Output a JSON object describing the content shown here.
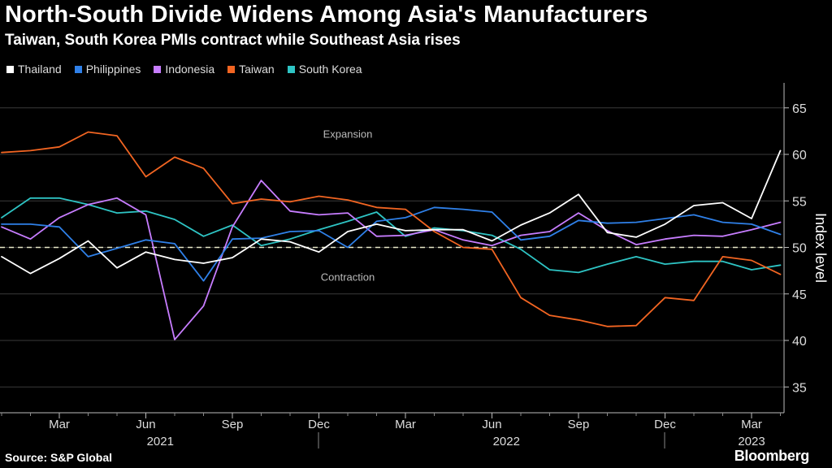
{
  "header": {
    "title": "North-South Divide Widens Among Asia's Manufacturers",
    "subtitle": "Taiwan, South Korea PMIs contract while Southeast Asia rises"
  },
  "footer": {
    "source": "Source: S&P Global",
    "logo": "Bloomberg"
  },
  "chart_data": {
    "type": "line",
    "title": "North-South Divide Widens Among Asia's Manufacturers",
    "subtitle": "Taiwan, South Korea PMIs contract while Southeast Asia rises",
    "ylabel": "Index level",
    "xlabel": "",
    "ylim": [
      32,
      67
    ],
    "yticks": [
      35,
      40,
      45,
      50,
      55,
      60,
      65
    ],
    "xtick_labels": [
      "Mar",
      "Jun",
      "Sep",
      "Dec",
      "Mar",
      "Jun",
      "Sep",
      "Dec",
      "Mar"
    ],
    "xtick_indices": [
      2,
      5,
      8,
      11,
      14,
      17,
      20,
      23,
      26
    ],
    "year_labels": [
      {
        "label": "2021",
        "index": 5.5
      },
      {
        "label": "2022",
        "index": 17.5
      },
      {
        "label": "2023",
        "index": 26
      }
    ],
    "year_separators": [
      11,
      23
    ],
    "reference_line": 50,
    "annotations": [
      {
        "text": "Expansion",
        "index": 12,
        "y": 61.8
      },
      {
        "text": "Contraction",
        "index": 12,
        "y": 46.4
      }
    ],
    "legend_position": "top-left",
    "grid": "horizontal",
    "x": [
      "Jan 2021",
      "Feb 2021",
      "Mar 2021",
      "Apr 2021",
      "May 2021",
      "Jun 2021",
      "Jul 2021",
      "Aug 2021",
      "Sep 2021",
      "Oct 2021",
      "Nov 2021",
      "Dec 2021",
      "Jan 2022",
      "Feb 2022",
      "Mar 2022",
      "Apr 2022",
      "May 2022",
      "Jun 2022",
      "Jul 2022",
      "Aug 2022",
      "Sep 2022",
      "Oct 2022",
      "Nov 2022",
      "Dec 2022",
      "Jan 2023",
      "Feb 2023",
      "Mar 2023",
      "Apr 2023"
    ],
    "series": [
      {
        "name": "Thailand",
        "color": "#ffffff",
        "values": [
          49.0,
          47.2,
          48.8,
          50.7,
          47.8,
          49.5,
          48.7,
          48.3,
          48.9,
          50.9,
          50.6,
          49.5,
          51.7,
          52.5,
          51.8,
          51.9,
          51.9,
          50.7,
          52.4,
          53.7,
          55.7,
          51.6,
          51.1,
          52.5,
          54.5,
          54.8,
          53.1,
          60.4
        ]
      },
      {
        "name": "Philippines",
        "color": "#2f80e8",
        "values": [
          52.5,
          52.5,
          52.2,
          49.0,
          49.9,
          50.8,
          50.4,
          46.4,
          50.9,
          51.0,
          51.7,
          51.8,
          50.0,
          52.8,
          53.2,
          54.3,
          54.1,
          53.8,
          50.8,
          51.2,
          52.9,
          52.6,
          52.7,
          53.1,
          53.5,
          52.7,
          52.5,
          51.4
        ]
      },
      {
        "name": "Indonesia",
        "color": "#c77dff",
        "values": [
          52.2,
          50.9,
          53.2,
          54.6,
          55.3,
          53.5,
          40.1,
          43.7,
          52.2,
          57.2,
          53.9,
          53.5,
          53.7,
          51.2,
          51.3,
          51.9,
          50.8,
          50.2,
          51.3,
          51.7,
          53.7,
          51.8,
          50.3,
          50.9,
          51.3,
          51.2,
          51.9,
          52.7
        ]
      },
      {
        "name": "Taiwan",
        "color": "#f26522",
        "values": [
          60.2,
          60.4,
          60.8,
          62.4,
          62.0,
          57.6,
          59.7,
          58.5,
          54.7,
          55.2,
          54.9,
          55.5,
          55.1,
          54.3,
          54.1,
          51.7,
          50.0,
          49.8,
          44.6,
          42.7,
          42.2,
          41.5,
          41.6,
          44.6,
          44.3,
          49.0,
          48.6,
          47.1
        ]
      },
      {
        "name": "South Korea",
        "color": "#2ec4c4",
        "values": [
          53.2,
          55.3,
          55.3,
          54.6,
          53.7,
          53.9,
          53.0,
          51.2,
          52.4,
          50.2,
          50.9,
          51.9,
          52.8,
          53.8,
          51.2,
          52.1,
          51.8,
          51.3,
          49.8,
          47.6,
          47.3,
          48.2,
          49.0,
          48.2,
          48.5,
          48.5,
          47.6,
          48.1
        ]
      }
    ]
  }
}
